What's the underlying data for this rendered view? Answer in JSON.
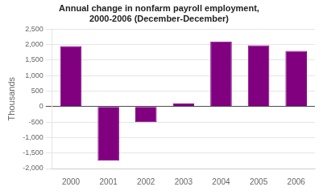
{
  "chart_data": {
    "type": "bar",
    "title": "Annual change in nonfarm payroll employment,\n2000-2006 (December-December)",
    "ylabel": "Thousands",
    "categories": [
      "2000",
      "2001",
      "2002",
      "2003",
      "2004",
      "2005",
      "2006"
    ],
    "values": [
      1950,
      -1750,
      -500,
      100,
      2100,
      1980,
      1800
    ],
    "color": "#800080",
    "ylim": [
      -2000,
      2500
    ],
    "yticks": [
      {
        "value": -2000,
        "label": "-2,000"
      },
      {
        "value": -1500,
        "label": "-1,500"
      },
      {
        "value": -1000,
        "label": "-1,000"
      },
      -500,
      0,
      500,
      {
        "value": 1000,
        "label": "1,000"
      },
      {
        "value": 1500,
        "label": "1,500"
      },
      {
        "value": 2000,
        "label": "2,000"
      },
      {
        "value": 2500,
        "label": "2,500"
      }
    ],
    "grid": true
  }
}
